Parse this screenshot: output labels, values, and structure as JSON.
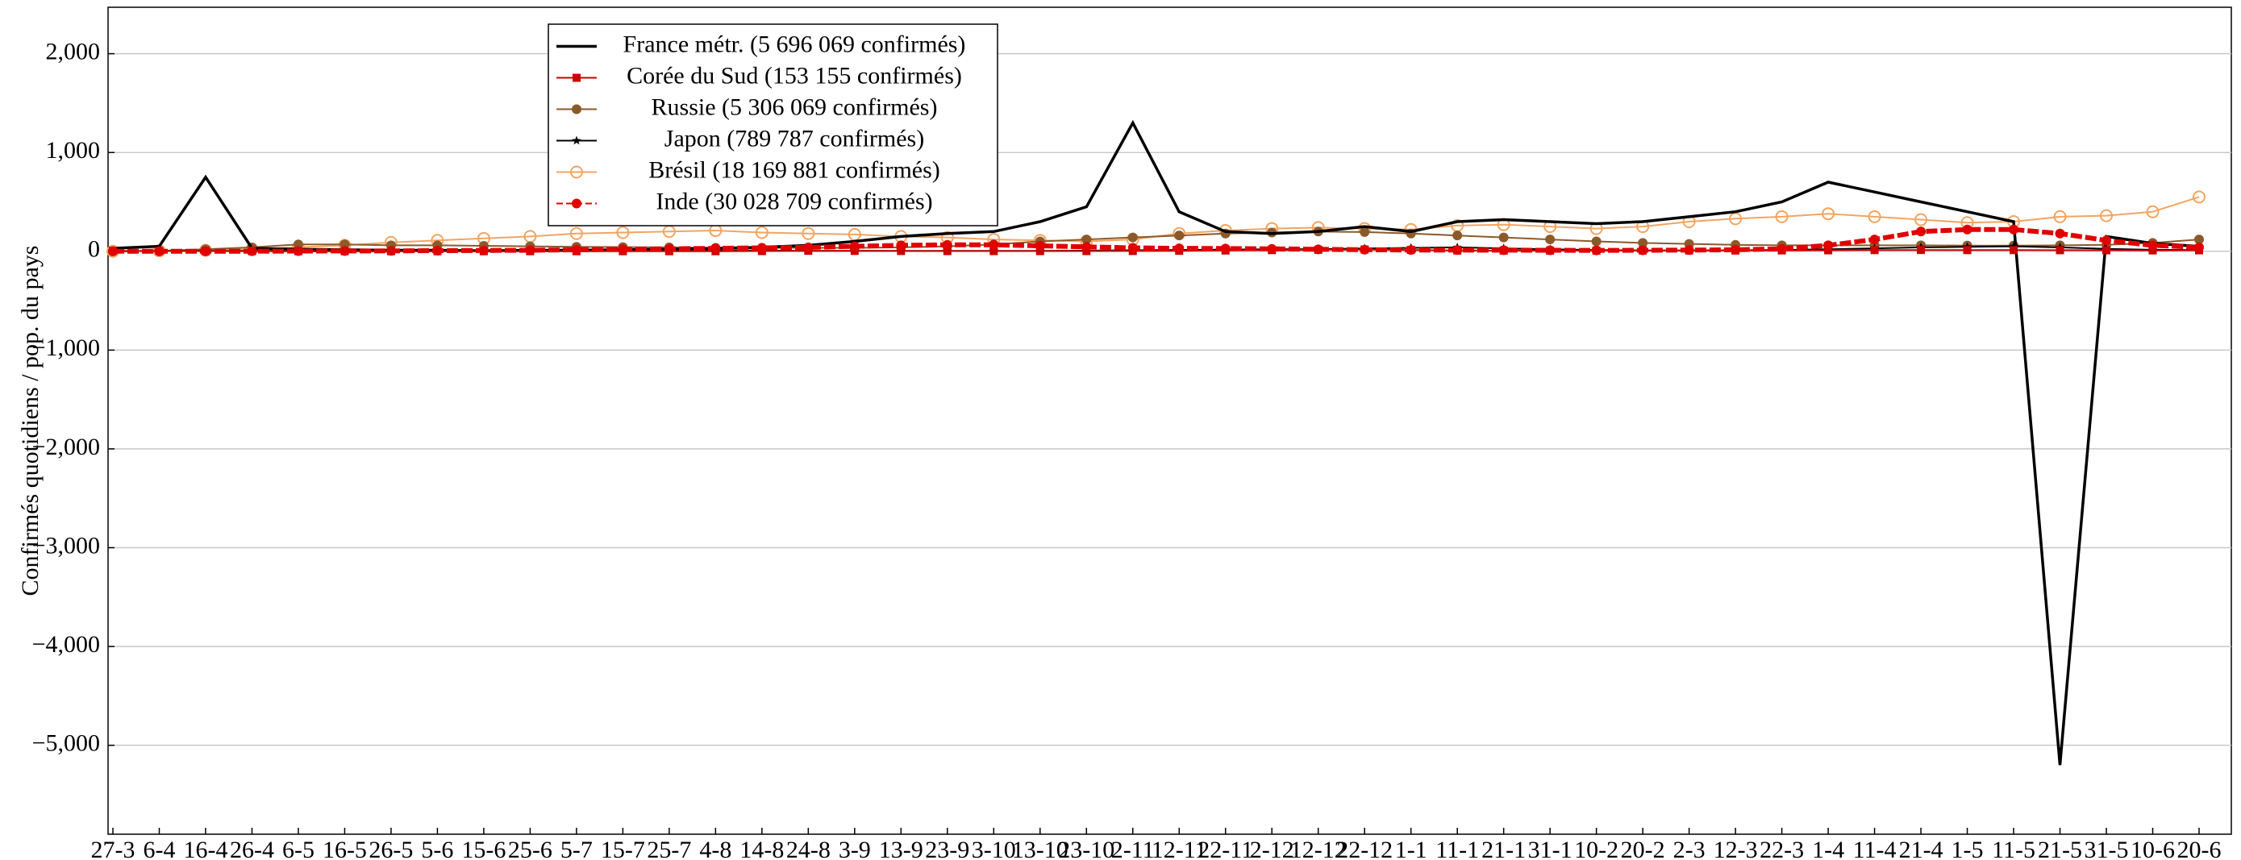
{
  "chart_data": {
    "type": "line",
    "y_label": "Confirmés quotidiens / pop. du pays",
    "categories": [
      "27-3",
      "6-4",
      "16-4",
      "26-4",
      "6-5",
      "16-5",
      "26-5",
      "5-6",
      "15-6",
      "25-6",
      "5-7",
      "15-7",
      "25-7",
      "4-8",
      "14-8",
      "24-8",
      "3-9",
      "13-9",
      "23-9",
      "3-10",
      "13-10",
      "23-10",
      "2-11",
      "12-11",
      "22-11",
      "2-12",
      "12-12",
      "22-12",
      "1-1",
      "11-1",
      "21-1",
      "31-1",
      "10-2",
      "20-2",
      "2-3",
      "12-3",
      "22-3",
      "1-4",
      "11-4",
      "21-4",
      "1-5",
      "11-5",
      "21-5",
      "31-5",
      "10-6",
      "20-6"
    ],
    "ylim": [
      -5900,
      2470
    ],
    "yticks": [
      {
        "value": -5000,
        "label": "−5,000"
      },
      {
        "value": -4000,
        "label": "−4,000"
      },
      {
        "value": -3000,
        "label": "−3,000"
      },
      {
        "value": -2000,
        "label": "−2,000"
      },
      {
        "value": -1000,
        "label": "−1,000"
      },
      0,
      {
        "value": 1000,
        "label": "1,000"
      },
      {
        "value": 2000,
        "label": "2,000"
      }
    ],
    "grid": true,
    "series": [
      {
        "name": "France métr. (5 696 069 confirmés)",
        "color": "#000000",
        "marker": "none",
        "values": [
          30,
          50,
          750,
          30,
          20,
          15,
          10,
          10,
          5,
          10,
          10,
          15,
          20,
          30,
          40,
          60,
          100,
          150,
          180,
          200,
          300,
          450,
          1300,
          400,
          200,
          180,
          200,
          250,
          200,
          300,
          320,
          300,
          280,
          300,
          350,
          400,
          500,
          700,
          600,
          500,
          400,
          300,
          -5200,
          150,
          80,
          50
        ]
      },
      {
        "name": "Corée du Sud (153 155 confirmés)",
        "color": "#cc0000",
        "marker": "square",
        "values": [
          5,
          3,
          2,
          1,
          1,
          1,
          1,
          1,
          1,
          1,
          1,
          1,
          1,
          1,
          2,
          5,
          4,
          3,
          2,
          2,
          2,
          2,
          3,
          5,
          8,
          12,
          15,
          18,
          14,
          8,
          7,
          7,
          7,
          8,
          8,
          8,
          9,
          10,
          12,
          13,
          12,
          12,
          11,
          10,
          9,
          10
        ]
      },
      {
        "name": "Russie (5 306 069 confirmés)",
        "color": "#8b5a2b",
        "marker": "circle",
        "values": [
          1,
          5,
          20,
          40,
          70,
          70,
          60,
          60,
          55,
          50,
          45,
          42,
          40,
          35,
          35,
          35,
          35,
          40,
          50,
          70,
          100,
          120,
          140,
          160,
          180,
          190,
          200,
          195,
          180,
          160,
          140,
          120,
          100,
          85,
          75,
          65,
          60,
          60,
          60,
          60,
          58,
          58,
          60,
          65,
          85,
          120
        ]
      },
      {
        "name": "Japon (789 787 confirmés)",
        "color": "#000000",
        "marker": "star",
        "values": [
          1,
          3,
          4,
          3,
          1,
          0,
          0,
          0,
          0,
          1,
          2,
          5,
          8,
          9,
          8,
          5,
          4,
          4,
          4,
          4,
          5,
          6,
          10,
          14,
          18,
          20,
          22,
          28,
          35,
          40,
          30,
          20,
          12,
          9,
          9,
          10,
          14,
          20,
          30,
          40,
          45,
          50,
          40,
          25,
          15,
          12
        ]
      },
      {
        "name": "Brésil (18 169 881 confirmés)",
        "color": "#f4a460",
        "marker": "open-circle",
        "values": [
          0,
          5,
          10,
          20,
          40,
          60,
          90,
          110,
          130,
          150,
          180,
          190,
          200,
          210,
          190,
          180,
          170,
          150,
          140,
          120,
          110,
          100,
          120,
          180,
          210,
          230,
          240,
          230,
          220,
          260,
          270,
          250,
          230,
          250,
          300,
          330,
          350,
          380,
          350,
          320,
          290,
          300,
          350,
          360,
          400,
          550
        ]
      },
      {
        "name": "Inde (30 028 709 confirmés)",
        "color": "#e00000",
        "marker": "dot",
        "values": [
          0,
          0,
          0,
          1,
          2,
          3,
          4,
          6,
          8,
          10,
          15,
          20,
          25,
          30,
          35,
          40,
          50,
          60,
          65,
          65,
          55,
          45,
          35,
          30,
          28,
          25,
          20,
          16,
          13,
          12,
          11,
          10,
          9,
          10,
          12,
          15,
          25,
          60,
          120,
          200,
          220,
          220,
          180,
          110,
          60,
          40
        ]
      }
    ]
  }
}
